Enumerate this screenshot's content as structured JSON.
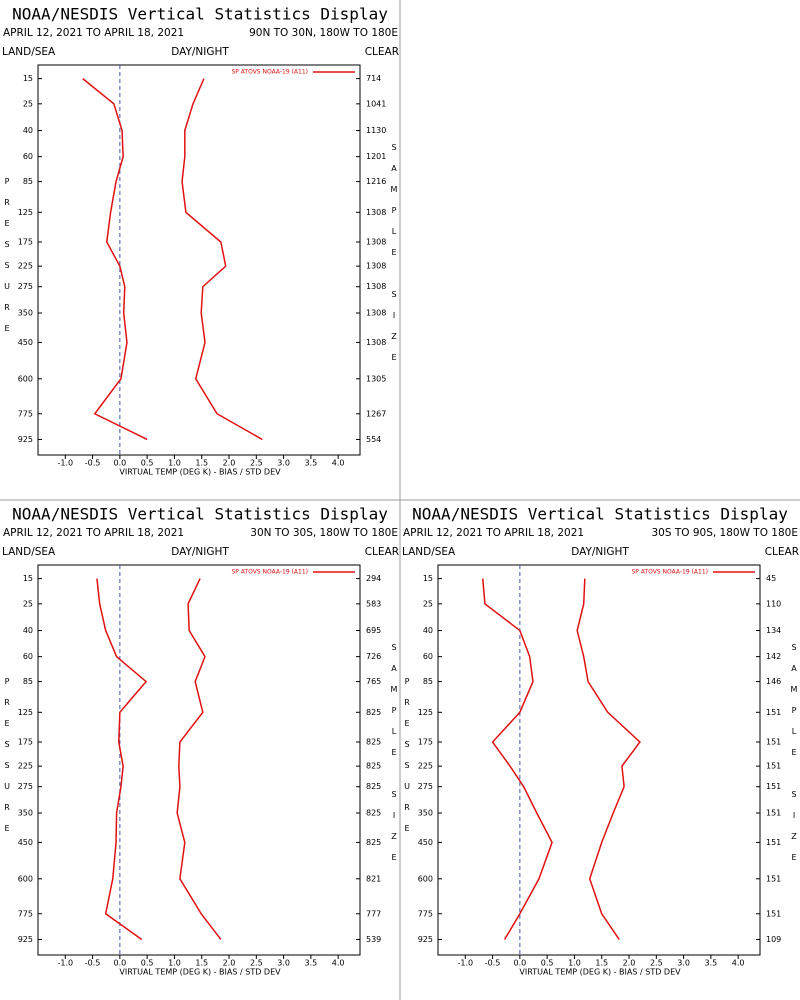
{
  "chart_data": [
    {
      "type": "line",
      "title": "NOAA/NESDIS Vertical Statistics Display",
      "date_range": "APRIL 12, 2021 TO APRIL 18, 2021",
      "region": "90N TO 30N, 180W TO 180E",
      "left_label": "LAND/SEA",
      "center_label": "DAY/NIGHT",
      "right_label": "CLEAR",
      "ylabel": "PRESSURE",
      "y2label": "SAMPLE SIZE",
      "xlabel": "VIRTUAL TEMP (DEG K) - BIAS / STD DEV",
      "y": [
        15,
        25,
        40,
        60,
        85,
        125,
        175,
        225,
        275,
        350,
        450,
        600,
        775,
        925
      ],
      "sample_size": [
        714,
        1041,
        1130,
        1201,
        1216,
        1308,
        1308,
        1308,
        1308,
        1308,
        1308,
        1305,
        1267,
        554
      ],
      "series": [
        {
          "name": "SP ATOVS NOAA-19 (A11)",
          "color": "#e01010",
          "bias": [
            -0.68,
            -0.11,
            0.04,
            0.06,
            -0.07,
            -0.17,
            -0.24,
            0.0,
            0.09,
            0.07,
            0.13,
            0.02,
            -0.46,
            0.5
          ],
          "std_dev": [
            1.54,
            1.34,
            1.19,
            1.19,
            1.14,
            1.21,
            1.85,
            1.94,
            1.52,
            1.49,
            1.56,
            1.39,
            1.78,
            2.61
          ]
        }
      ],
      "xlim": [
        -1.5,
        4.4
      ],
      "xticks": [
        {
          "value": -1,
          "label": "-1.0"
        },
        -0.5,
        {
          "value": 0,
          "label": "0.0"
        },
        0.5,
        {
          "value": 1,
          "label": "1.0"
        },
        1.5,
        {
          "value": 2,
          "label": "2.0"
        },
        2.5,
        {
          "value": 3,
          "label": "3.0"
        },
        3.5,
        {
          "value": 4,
          "label": "4.0"
        }
      ],
      "ylim": [
        11,
        1025
      ],
      "yscale": {
        "type": "power",
        "exponent": 0.286
      },
      "zero_line": true
    },
    {
      "type": "line",
      "title": "NOAA/NESDIS Vertical Statistics Display",
      "date_range": "APRIL 12, 2021 TO APRIL 18, 2021",
      "region": "30N TO 30S, 180W TO 180E",
      "left_label": "LAND/SEA",
      "center_label": "DAY/NIGHT",
      "right_label": "CLEAR",
      "ylabel": "PRESSURE",
      "y2label": "SAMPLE SIZE",
      "xlabel": "VIRTUAL TEMP (DEG K) - BIAS / STD DEV",
      "y": [
        15,
        25,
        40,
        60,
        85,
        125,
        175,
        225,
        275,
        350,
        450,
        600,
        775,
        925
      ],
      "sample_size": [
        294,
        583,
        695,
        726,
        765,
        825,
        825,
        825,
        825,
        825,
        825,
        821,
        777,
        539
      ],
      "series": [
        {
          "name": "SP ATOVS NOAA-19 (A11)",
          "color": "#e01010",
          "bias": [
            -0.42,
            -0.37,
            -0.26,
            -0.06,
            0.48,
            0.0,
            -0.02,
            0.06,
            0.02,
            -0.06,
            -0.07,
            -0.13,
            -0.26,
            0.4
          ],
          "std_dev": [
            1.47,
            1.25,
            1.27,
            1.56,
            1.38,
            1.52,
            1.1,
            1.08,
            1.1,
            1.05,
            1.19,
            1.1,
            1.49,
            1.85
          ]
        }
      ],
      "xlim": [
        -1.5,
        4.4
      ],
      "xticks": [
        {
          "value": -1,
          "label": "-1.0"
        },
        -0.5,
        {
          "value": 0,
          "label": "0.0"
        },
        0.5,
        {
          "value": 1,
          "label": "1.0"
        },
        1.5,
        {
          "value": 2,
          "label": "2.0"
        },
        2.5,
        {
          "value": 3,
          "label": "3.0"
        },
        3.5,
        {
          "value": 4,
          "label": "4.0"
        }
      ],
      "ylim": [
        11,
        1025
      ],
      "yscale": {
        "type": "power",
        "exponent": 0.286
      },
      "zero_line": true
    },
    {
      "type": "line",
      "title": "NOAA/NESDIS Vertical Statistics Display",
      "date_range": "APRIL 12, 2021 TO APRIL 18, 2021",
      "region": "30S TO 90S, 180W TO 180E",
      "left_label": "LAND/SEA",
      "center_label": "DAY/NIGHT",
      "right_label": "CLEAR",
      "ylabel": "PRESSURE",
      "y2label": "SAMPLE SIZE",
      "xlabel": "VIRTUAL TEMP (DEG K) - BIAS / STD DEV",
      "y": [
        15,
        25,
        40,
        60,
        85,
        125,
        175,
        225,
        275,
        350,
        450,
        600,
        775,
        925
      ],
      "sample_size": [
        45,
        110,
        134,
        142,
        146,
        151,
        151,
        151,
        151,
        151,
        151,
        151,
        151,
        109
      ],
      "series": [
        {
          "name": "SP ATOVS NOAA-19 (A11)",
          "color": "#e01010",
          "bias": [
            -0.68,
            -0.64,
            0.0,
            0.18,
            0.24,
            0.0,
            -0.5,
            -0.18,
            0.07,
            0.31,
            0.59,
            0.35,
            0.0,
            -0.28
          ],
          "std_dev": [
            1.19,
            1.17,
            1.05,
            1.17,
            1.25,
            1.61,
            2.2,
            1.87,
            1.91,
            1.71,
            1.5,
            1.28,
            1.5,
            1.82
          ]
        }
      ],
      "xlim": [
        -1.5,
        4.4
      ],
      "xticks": [
        {
          "value": -1,
          "label": "-1.0"
        },
        -0.5,
        {
          "value": 0,
          "label": "0.0"
        },
        0.5,
        {
          "value": 1,
          "label": "1.0"
        },
        1.5,
        {
          "value": 2,
          "label": "2.0"
        },
        2.5,
        {
          "value": 3,
          "label": "3.0"
        },
        3.5,
        {
          "value": 4,
          "label": "4.0"
        }
      ],
      "ylim": [
        11,
        1025
      ],
      "yscale": {
        "type": "power",
        "exponent": 0.286
      },
      "zero_line": true
    }
  ]
}
